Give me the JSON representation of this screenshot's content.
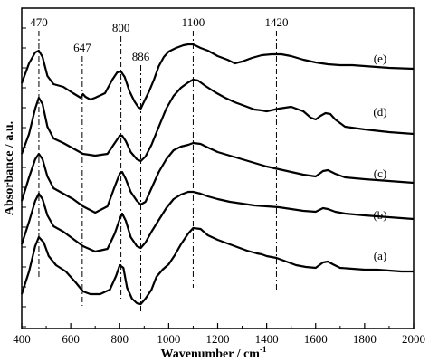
{
  "chart_data": {
    "type": "line",
    "xlabel": "Wavenumber / cm",
    "xlabel_sup": "-1",
    "ylabel": "Absorbance / a.u.",
    "xlim": [
      400,
      2000
    ],
    "x_ticks": [
      "400",
      "600",
      "800",
      "1000",
      "1200",
      "1400",
      "1600",
      "1800",
      "2000"
    ],
    "y_ticks_labeled": false,
    "grid": false,
    "legend": "none",
    "peak_markers": [
      {
        "label": "470",
        "x": 470
      },
      {
        "label": "647",
        "x": 647
      },
      {
        "label": "800",
        "x": 805
      },
      {
        "label": "886",
        "x": 886
      },
      {
        "label": "1100",
        "x": 1100
      },
      {
        "label": "1420",
        "x": 1440
      }
    ],
    "series": [
      {
        "name": "(a)",
        "points": [
          [
            400,
            325
          ],
          [
            430,
            300
          ],
          [
            455,
            272
          ],
          [
            470,
            262
          ],
          [
            490,
            268
          ],
          [
            510,
            283
          ],
          [
            540,
            293
          ],
          [
            580,
            300
          ],
          [
            620,
            312
          ],
          [
            650,
            322
          ],
          [
            680,
            325
          ],
          [
            720,
            325
          ],
          [
            760,
            320
          ],
          [
            785,
            305
          ],
          [
            800,
            293
          ],
          [
            815,
            296
          ],
          [
            830,
            318
          ],
          [
            850,
            330
          ],
          [
            870,
            335
          ],
          [
            886,
            336
          ],
          [
            905,
            330
          ],
          [
            930,
            320
          ],
          [
            950,
            306
          ],
          [
            975,
            298
          ],
          [
            1000,
            292
          ],
          [
            1025,
            282
          ],
          [
            1050,
            270
          ],
          [
            1080,
            258
          ],
          [
            1100,
            252
          ],
          [
            1130,
            253
          ],
          [
            1160,
            260
          ],
          [
            1200,
            265
          ],
          [
            1240,
            269
          ],
          [
            1280,
            273
          ],
          [
            1320,
            277
          ],
          [
            1360,
            280
          ],
          [
            1380,
            281
          ],
          [
            1400,
            283
          ],
          [
            1440,
            285
          ],
          [
            1480,
            289
          ],
          [
            1520,
            293
          ],
          [
            1560,
            295
          ],
          [
            1600,
            296
          ],
          [
            1630,
            290
          ],
          [
            1650,
            289
          ],
          [
            1670,
            292
          ],
          [
            1700,
            296
          ],
          [
            1750,
            297
          ],
          [
            1800,
            298
          ],
          [
            1850,
            298
          ],
          [
            1900,
            299
          ],
          [
            1950,
            300
          ],
          [
            2000,
            300
          ]
        ]
      },
      {
        "name": "(b)",
        "points": [
          [
            400,
            270
          ],
          [
            430,
            245
          ],
          [
            455,
            222
          ],
          [
            470,
            214
          ],
          [
            485,
            220
          ],
          [
            505,
            238
          ],
          [
            530,
            250
          ],
          [
            570,
            256
          ],
          [
            610,
            264
          ],
          [
            650,
            272
          ],
          [
            700,
            278
          ],
          [
            750,
            275
          ],
          [
            780,
            258
          ],
          [
            800,
            242
          ],
          [
            810,
            236
          ],
          [
            825,
            244
          ],
          [
            845,
            262
          ],
          [
            870,
            272
          ],
          [
            886,
            274
          ],
          [
            905,
            268
          ],
          [
            930,
            256
          ],
          [
            960,
            243
          ],
          [
            990,
            230
          ],
          [
            1020,
            220
          ],
          [
            1050,
            215
          ],
          [
            1080,
            212
          ],
          [
            1100,
            212
          ],
          [
            1130,
            214
          ],
          [
            1160,
            217
          ],
          [
            1200,
            220
          ],
          [
            1250,
            223
          ],
          [
            1300,
            225
          ],
          [
            1350,
            227
          ],
          [
            1400,
            228
          ],
          [
            1450,
            229
          ],
          [
            1500,
            231
          ],
          [
            1550,
            233
          ],
          [
            1600,
            234
          ],
          [
            1630,
            230
          ],
          [
            1650,
            231
          ],
          [
            1680,
            234
          ],
          [
            1720,
            236
          ],
          [
            1800,
            238
          ],
          [
            1900,
            240
          ],
          [
            2000,
            242
          ]
        ]
      },
      {
        "name": "(c)",
        "points": [
          [
            400,
            222
          ],
          [
            430,
            196
          ],
          [
            455,
            176
          ],
          [
            470,
            170
          ],
          [
            485,
            176
          ],
          [
            505,
            195
          ],
          [
            530,
            208
          ],
          [
            570,
            214
          ],
          [
            610,
            220
          ],
          [
            650,
            228
          ],
          [
            700,
            235
          ],
          [
            750,
            228
          ],
          [
            780,
            206
          ],
          [
            800,
            192
          ],
          [
            810,
            190
          ],
          [
            825,
            198
          ],
          [
            845,
            212
          ],
          [
            870,
            222
          ],
          [
            886,
            226
          ],
          [
            905,
            223
          ],
          [
            930,
            208
          ],
          [
            960,
            190
          ],
          [
            990,
            176
          ],
          [
            1020,
            166
          ],
          [
            1050,
            162
          ],
          [
            1080,
            160
          ],
          [
            1100,
            158
          ],
          [
            1130,
            159
          ],
          [
            1160,
            163
          ],
          [
            1200,
            168
          ],
          [
            1250,
            172
          ],
          [
            1300,
            176
          ],
          [
            1350,
            180
          ],
          [
            1400,
            184
          ],
          [
            1450,
            187
          ],
          [
            1500,
            190
          ],
          [
            1550,
            193
          ],
          [
            1600,
            195
          ],
          [
            1630,
            189
          ],
          [
            1650,
            188
          ],
          [
            1680,
            192
          ],
          [
            1720,
            196
          ],
          [
            1800,
            198
          ],
          [
            1900,
            200
          ],
          [
            2000,
            202
          ]
        ]
      },
      {
        "name": "(d)",
        "points": [
          [
            400,
            170
          ],
          [
            430,
            148
          ],
          [
            455,
            120
          ],
          [
            470,
            108
          ],
          [
            485,
            115
          ],
          [
            505,
            140
          ],
          [
            530,
            153
          ],
          [
            570,
            158
          ],
          [
            610,
            164
          ],
          [
            650,
            170
          ],
          [
            700,
            172
          ],
          [
            750,
            170
          ],
          [
            780,
            158
          ],
          [
            800,
            150
          ],
          [
            810,
            150
          ],
          [
            825,
            156
          ],
          [
            845,
            168
          ],
          [
            870,
            176
          ],
          [
            886,
            178
          ],
          [
            905,
            173
          ],
          [
            930,
            160
          ],
          [
            960,
            140
          ],
          [
            990,
            120
          ],
          [
            1020,
            106
          ],
          [
            1050,
            97
          ],
          [
            1080,
            91
          ],
          [
            1100,
            88
          ],
          [
            1120,
            89
          ],
          [
            1150,
            95
          ],
          [
            1190,
            102
          ],
          [
            1230,
            108
          ],
          [
            1270,
            113
          ],
          [
            1310,
            117
          ],
          [
            1350,
            121
          ],
          [
            1380,
            122
          ],
          [
            1400,
            123
          ],
          [
            1450,
            120
          ],
          [
            1500,
            118
          ],
          [
            1550,
            123
          ],
          [
            1580,
            130
          ],
          [
            1600,
            132
          ],
          [
            1620,
            128
          ],
          [
            1640,
            125
          ],
          [
            1660,
            126
          ],
          [
            1680,
            132
          ],
          [
            1720,
            140
          ],
          [
            1800,
            143
          ],
          [
            1900,
            146
          ],
          [
            2000,
            148
          ]
        ]
      },
      {
        "name": "(e)",
        "points": [
          [
            400,
            92
          ],
          [
            430,
            70
          ],
          [
            455,
            58
          ],
          [
            470,
            56
          ],
          [
            485,
            63
          ],
          [
            505,
            84
          ],
          [
            530,
            93
          ],
          [
            570,
            96
          ],
          [
            610,
            103
          ],
          [
            640,
            108
          ],
          [
            650,
            104
          ],
          [
            660,
            107
          ],
          [
            680,
            110
          ],
          [
            700,
            108
          ],
          [
            740,
            103
          ],
          [
            770,
            88
          ],
          [
            790,
            80
          ],
          [
            805,
            79
          ],
          [
            820,
            85
          ],
          [
            840,
            101
          ],
          [
            860,
            112
          ],
          [
            875,
            118
          ],
          [
            886,
            120
          ],
          [
            900,
            112
          ],
          [
            920,
            101
          ],
          [
            940,
            88
          ],
          [
            960,
            73
          ],
          [
            980,
            63
          ],
          [
            1000,
            57
          ],
          [
            1030,
            53
          ],
          [
            1060,
            50
          ],
          [
            1080,
            49
          ],
          [
            1100,
            49
          ],
          [
            1130,
            53
          ],
          [
            1160,
            56
          ],
          [
            1200,
            62
          ],
          [
            1240,
            66
          ],
          [
            1270,
            70
          ],
          [
            1300,
            68
          ],
          [
            1340,
            64
          ],
          [
            1380,
            61
          ],
          [
            1420,
            60
          ],
          [
            1460,
            60
          ],
          [
            1500,
            62
          ],
          [
            1550,
            66
          ],
          [
            1600,
            69
          ],
          [
            1650,
            71
          ],
          [
            1700,
            72
          ],
          [
            1750,
            72
          ],
          [
            1800,
            73
          ],
          [
            1900,
            75
          ],
          [
            2000,
            76
          ]
        ]
      }
    ]
  }
}
